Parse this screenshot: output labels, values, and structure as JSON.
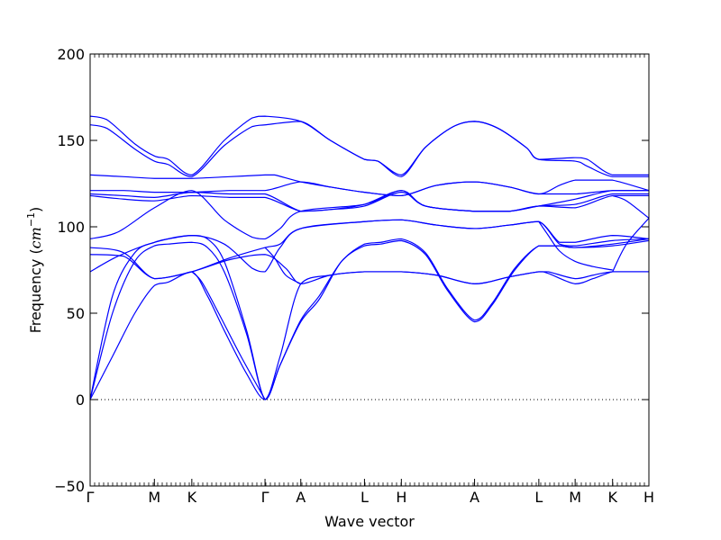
{
  "chart_data": {
    "type": "line",
    "xlabel": "Wave vector",
    "ylabel": "Frequency",
    "ylabel_unit": "cm",
    "ylabel_unit_exp": "−1",
    "ylim": [
      -50,
      200
    ],
    "yticks": [
      -50,
      0,
      50,
      100,
      150,
      200
    ],
    "xlim": [
      0,
      1
    ],
    "grid": false,
    "line_color": "#0000ff",
    "zero_line": {
      "y": 0,
      "style": "dotted",
      "color": "#000000"
    },
    "high_symmetry_points": [
      {
        "label": "Γ",
        "x": 0.0
      },
      {
        "label": "M",
        "x": 0.115
      },
      {
        "label": "K",
        "x": 0.182
      },
      {
        "label": "Γ",
        "x": 0.313
      },
      {
        "label": "A",
        "x": 0.377
      },
      {
        "label": "L",
        "x": 0.491
      },
      {
        "label": "H",
        "x": 0.557
      },
      {
        "label": "A",
        "x": 0.688
      },
      {
        "label": "L",
        "x": 0.803
      },
      {
        "label": "M",
        "x": 0.868
      },
      {
        "label": "K",
        "x": 0.935
      },
      {
        "label": "H",
        "x": 1.0
      }
    ],
    "series": [
      {
        "values": [
          [
            0,
            164
          ],
          [
            0.03,
            162
          ],
          [
            0.08,
            148
          ],
          [
            0.115,
            141
          ],
          [
            0.14,
            139
          ],
          [
            0.182,
            130
          ],
          [
            0.24,
            150
          ],
          [
            0.29,
            163
          ],
          [
            0.313,
            164
          ],
          [
            0.377,
            161
          ],
          [
            0.43,
            150
          ],
          [
            0.491,
            139
          ],
          [
            0.515,
            138
          ],
          [
            0.557,
            130
          ],
          [
            0.6,
            146
          ],
          [
            0.65,
            158
          ],
          [
            0.688,
            161
          ],
          [
            0.73,
            157
          ],
          [
            0.78,
            146
          ],
          [
            0.803,
            139
          ],
          [
            0.868,
            140
          ],
          [
            0.89,
            139
          ],
          [
            0.935,
            130
          ],
          [
            1.0,
            130
          ]
        ]
      },
      {
        "values": [
          [
            0,
            159
          ],
          [
            0.03,
            157
          ],
          [
            0.08,
            145
          ],
          [
            0.115,
            138
          ],
          [
            0.14,
            136
          ],
          [
            0.182,
            129
          ],
          [
            0.24,
            147
          ],
          [
            0.29,
            158
          ],
          [
            0.313,
            159
          ],
          [
            0.377,
            161
          ],
          [
            0.43,
            150
          ],
          [
            0.491,
            139
          ],
          [
            0.515,
            138
          ],
          [
            0.557,
            129
          ],
          [
            0.6,
            146
          ],
          [
            0.65,
            158
          ],
          [
            0.688,
            161
          ],
          [
            0.73,
            157
          ],
          [
            0.78,
            146
          ],
          [
            0.803,
            139
          ],
          [
            0.868,
            138
          ],
          [
            0.89,
            135
          ],
          [
            0.935,
            129
          ],
          [
            1.0,
            129
          ]
        ]
      },
      {
        "values": [
          [
            0,
            130
          ],
          [
            0.06,
            129
          ],
          [
            0.115,
            128
          ],
          [
            0.182,
            128
          ],
          [
            0.25,
            129
          ],
          [
            0.313,
            130
          ],
          [
            0.33,
            130
          ],
          [
            0.377,
            126
          ],
          [
            0.43,
            123
          ],
          [
            0.491,
            120
          ],
          [
            0.557,
            118
          ],
          [
            0.62,
            124
          ],
          [
            0.688,
            126
          ],
          [
            0.75,
            123
          ],
          [
            0.803,
            119
          ],
          [
            0.84,
            124
          ],
          [
            0.868,
            127
          ],
          [
            0.9,
            127
          ],
          [
            0.935,
            127
          ],
          [
            1.0,
            121
          ]
        ]
      },
      {
        "values": [
          [
            0,
            121
          ],
          [
            0.06,
            121
          ],
          [
            0.115,
            120
          ],
          [
            0.182,
            120
          ],
          [
            0.25,
            121
          ],
          [
            0.313,
            121
          ],
          [
            0.377,
            126
          ],
          [
            0.43,
            123
          ],
          [
            0.491,
            120
          ],
          [
            0.557,
            118
          ],
          [
            0.62,
            124
          ],
          [
            0.688,
            126
          ],
          [
            0.75,
            123
          ],
          [
            0.803,
            119
          ],
          [
            0.868,
            119
          ],
          [
            0.935,
            121
          ],
          [
            1.0,
            121
          ]
        ]
      },
      {
        "values": [
          [
            0,
            119
          ],
          [
            0.06,
            118
          ],
          [
            0.115,
            117
          ],
          [
            0.182,
            120
          ],
          [
            0.25,
            119
          ],
          [
            0.313,
            119
          ],
          [
            0.377,
            109
          ],
          [
            0.43,
            110
          ],
          [
            0.491,
            113
          ],
          [
            0.557,
            121
          ],
          [
            0.6,
            112
          ],
          [
            0.688,
            109
          ],
          [
            0.75,
            109
          ],
          [
            0.803,
            112
          ],
          [
            0.868,
            113
          ],
          [
            0.935,
            119
          ],
          [
            1.0,
            119
          ]
        ]
      },
      {
        "values": [
          [
            0,
            118
          ],
          [
            0.06,
            116
          ],
          [
            0.115,
            115
          ],
          [
            0.182,
            118
          ],
          [
            0.25,
            117
          ],
          [
            0.313,
            117
          ],
          [
            0.377,
            109
          ],
          [
            0.43,
            110
          ],
          [
            0.491,
            112
          ],
          [
            0.557,
            120
          ],
          [
            0.6,
            112
          ],
          [
            0.688,
            109
          ],
          [
            0.75,
            109
          ],
          [
            0.803,
            112
          ],
          [
            0.868,
            111
          ],
          [
            0.935,
            118
          ],
          [
            1.0,
            118
          ]
        ]
      },
      {
        "values": [
          [
            0,
            93
          ],
          [
            0.05,
            97
          ],
          [
            0.115,
            111
          ],
          [
            0.182,
            121
          ],
          [
            0.24,
            104
          ],
          [
            0.29,
            94
          ],
          [
            0.313,
            93
          ],
          [
            0.34,
            99
          ],
          [
            0.377,
            109
          ],
          [
            0.491,
            113
          ],
          [
            0.557,
            121
          ],
          [
            0.6,
            112
          ],
          [
            0.688,
            109
          ],
          [
            0.75,
            109
          ],
          [
            0.803,
            112
          ],
          [
            0.868,
            116
          ],
          [
            0.935,
            121
          ],
          [
            1.0,
            121
          ]
        ]
      },
      {
        "values": [
          [
            0,
            74
          ],
          [
            0.05,
            83
          ],
          [
            0.115,
            91
          ],
          [
            0.182,
            95
          ],
          [
            0.24,
            90
          ],
          [
            0.29,
            76
          ],
          [
            0.313,
            74
          ],
          [
            0.34,
            88
          ],
          [
            0.377,
            99
          ],
          [
            0.491,
            103
          ],
          [
            0.557,
            104
          ],
          [
            0.62,
            101
          ],
          [
            0.688,
            99
          ],
          [
            0.75,
            101
          ],
          [
            0.803,
            103
          ],
          [
            0.84,
            91
          ],
          [
            0.868,
            91
          ],
          [
            0.935,
            95
          ],
          [
            1.0,
            93
          ]
        ]
      },
      {
        "values": [
          [
            0,
            88
          ],
          [
            0.06,
            85
          ],
          [
            0.115,
            70
          ],
          [
            0.182,
            74
          ],
          [
            0.25,
            82
          ],
          [
            0.313,
            88
          ],
          [
            0.34,
            90
          ],
          [
            0.377,
            99
          ],
          [
            0.491,
            103
          ],
          [
            0.557,
            104
          ],
          [
            0.62,
            101
          ],
          [
            0.688,
            99
          ],
          [
            0.75,
            101
          ],
          [
            0.803,
            103
          ],
          [
            0.84,
            90
          ],
          [
            0.868,
            89
          ],
          [
            0.935,
            92
          ],
          [
            1.0,
            93
          ]
        ]
      },
      {
        "values": [
          [
            0,
            84
          ],
          [
            0.06,
            83
          ],
          [
            0.115,
            70
          ],
          [
            0.182,
            74
          ],
          [
            0.25,
            81
          ],
          [
            0.313,
            84
          ],
          [
            0.35,
            76
          ],
          [
            0.377,
            67
          ],
          [
            0.43,
            72
          ],
          [
            0.491,
            74
          ],
          [
            0.557,
            74
          ],
          [
            0.62,
            72
          ],
          [
            0.688,
            67
          ],
          [
            0.75,
            71
          ],
          [
            0.803,
            74
          ],
          [
            0.82,
            74
          ],
          [
            0.868,
            70
          ],
          [
            0.9,
            72
          ],
          [
            0.935,
            74
          ],
          [
            1.0,
            74
          ]
        ]
      },
      {
        "values": [
          [
            0,
            0
          ],
          [
            0.04,
            60
          ],
          [
            0.08,
            85
          ],
          [
            0.115,
            91
          ],
          [
            0.14,
            93
          ],
          [
            0.182,
            95
          ],
          [
            0.21,
            93
          ],
          [
            0.24,
            80
          ],
          [
            0.28,
            40
          ],
          [
            0.313,
            0
          ],
          [
            0.34,
            20
          ],
          [
            0.377,
            46
          ],
          [
            0.41,
            60
          ],
          [
            0.45,
            80
          ],
          [
            0.491,
            90
          ],
          [
            0.52,
            91
          ],
          [
            0.557,
            93
          ],
          [
            0.6,
            85
          ],
          [
            0.64,
            64
          ],
          [
            0.688,
            46
          ],
          [
            0.72,
            56
          ],
          [
            0.76,
            76
          ],
          [
            0.803,
            89
          ],
          [
            0.84,
            89
          ],
          [
            0.868,
            88
          ],
          [
            0.935,
            90
          ],
          [
            1.0,
            93
          ]
        ]
      },
      {
        "values": [
          [
            0,
            0
          ],
          [
            0.04,
            50
          ],
          [
            0.08,
            80
          ],
          [
            0.115,
            89
          ],
          [
            0.14,
            90
          ],
          [
            0.182,
            91
          ],
          [
            0.21,
            88
          ],
          [
            0.24,
            74
          ],
          [
            0.28,
            38
          ],
          [
            0.313,
            0
          ],
          [
            0.34,
            20
          ],
          [
            0.377,
            45
          ],
          [
            0.41,
            58
          ],
          [
            0.45,
            80
          ],
          [
            0.491,
            89
          ],
          [
            0.52,
            90
          ],
          [
            0.557,
            92
          ],
          [
            0.6,
            84
          ],
          [
            0.64,
            63
          ],
          [
            0.688,
            45
          ],
          [
            0.72,
            55
          ],
          [
            0.76,
            75
          ],
          [
            0.803,
            89
          ],
          [
            0.84,
            89
          ],
          [
            0.868,
            88
          ],
          [
            0.935,
            89
          ],
          [
            1.0,
            92
          ]
        ]
      },
      {
        "values": [
          [
            0,
            0
          ],
          [
            0.04,
            25
          ],
          [
            0.08,
            50
          ],
          [
            0.115,
            66
          ],
          [
            0.14,
            68
          ],
          [
            0.182,
            74
          ],
          [
            0.21,
            60
          ],
          [
            0.24,
            40
          ],
          [
            0.28,
            15
          ],
          [
            0.313,
            0
          ],
          [
            0.34,
            25
          ],
          [
            0.377,
            67
          ],
          [
            0.43,
            72
          ],
          [
            0.491,
            74
          ],
          [
            0.557,
            74
          ],
          [
            0.62,
            72
          ],
          [
            0.688,
            67
          ],
          [
            0.75,
            71
          ],
          [
            0.803,
            74
          ],
          [
            0.82,
            73
          ],
          [
            0.868,
            67
          ],
          [
            0.9,
            70
          ],
          [
            0.935,
            74
          ],
          [
            0.96,
            74
          ],
          [
            1.0,
            74
          ]
        ]
      },
      {
        "values": [
          [
            0.182,
            74
          ],
          [
            0.2,
            68
          ],
          [
            0.23,
            50
          ],
          [
            0.27,
            25
          ],
          [
            0.313,
            0
          ]
        ]
      },
      {
        "values": [
          [
            0.935,
            74
          ],
          [
            0.96,
            90
          ],
          [
            1.0,
            105
          ]
        ]
      },
      {
        "values": [
          [
            0.803,
            103
          ],
          [
            0.82,
            95
          ],
          [
            0.84,
            86
          ],
          [
            0.868,
            80
          ],
          [
            0.9,
            77
          ],
          [
            0.935,
            75
          ]
        ]
      },
      {
        "values": [
          [
            0.313,
            88
          ],
          [
            0.33,
            82
          ],
          [
            0.35,
            72
          ],
          [
            0.377,
            67
          ]
        ]
      },
      {
        "values": [
          [
            0.935,
            118
          ],
          [
            0.96,
            115
          ],
          [
            1.0,
            105
          ]
        ]
      }
    ]
  }
}
